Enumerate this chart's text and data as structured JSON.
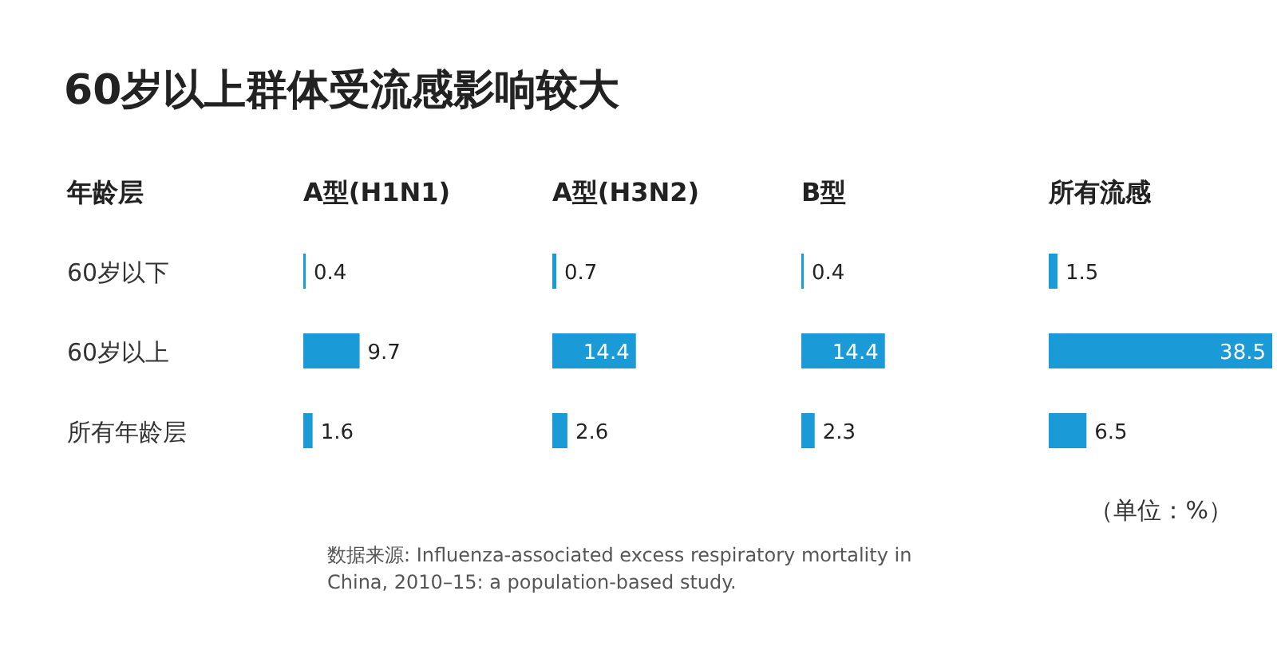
{
  "chart_data": [
    {
      "type": "other",
      "title": "60岁以上群体受流感影响较大",
      "annotations": [
        "（单位：%）",
        "数据来源: Influenza-associated excess respiratory mortality in China, 2010–15: a population-based study."
      ]
    },
    {
      "type": "bar",
      "orientation": "horizontal",
      "title": "A型(H1N1)",
      "ylabel": "年龄层",
      "categories": [
        "60岁以下",
        "60岁以上",
        "所有年龄层"
      ],
      "values": [
        0.4,
        9.7,
        1.6
      ],
      "color": "#1a9ad6",
      "data_labels": true,
      "tick_labels": "y"
    },
    {
      "type": "bar",
      "orientation": "horizontal",
      "title": "A型(H3N2)",
      "categories": [
        null,
        null,
        null
      ],
      "values": [
        0.7,
        14.4,
        2.6
      ],
      "color": "#1a9ad6",
      "data_labels": true
    },
    {
      "type": "bar",
      "orientation": "horizontal",
      "title": "B型",
      "categories": [
        null,
        null,
        null
      ],
      "values": [
        0.4,
        14.4,
        2.3
      ],
      "color": "#1a9ad6",
      "data_labels": true
    },
    {
      "type": "bar",
      "orientation": "horizontal",
      "title": "所有流感",
      "categories": [
        null,
        null,
        null
      ],
      "values": [
        1.5,
        38.5,
        6.5
      ],
      "color": "#1a9ad6",
      "data_labels": true
    }
  ]
}
